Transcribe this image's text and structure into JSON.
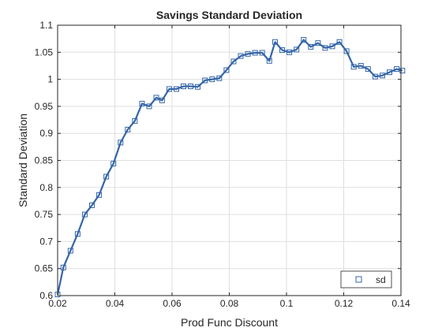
{
  "chart_data": {
    "type": "line",
    "title": "Savings Standard Deviation",
    "xlabel": "Prod Func Discount",
    "ylabel": "Standard Deviation",
    "xlim": [
      0.02,
      0.14
    ],
    "ylim": [
      0.6,
      1.1
    ],
    "xticks": [
      0.02,
      0.04,
      0.06,
      0.08,
      0.1,
      0.12,
      0.14
    ],
    "xtick_labels": [
      "0.02",
      "0.04",
      "0.06",
      "0.08",
      "0.1",
      "0.12",
      "0.14"
    ],
    "yticks": [
      0.6,
      0.65,
      0.7,
      0.75,
      0.8,
      0.85,
      0.9,
      0.95,
      1.0,
      1.05,
      1.1
    ],
    "ytick_labels": [
      "0.6",
      "0.65",
      "0.7",
      "0.75",
      "0.8",
      "0.85",
      "0.9",
      "0.95",
      "1",
      "1.05",
      "1.1"
    ],
    "grid": true,
    "legend_position": "bottom-right",
    "line_color": "#3465a8",
    "marker": "square",
    "series": [
      {
        "name": "sd",
        "x": [
          0.02,
          0.022,
          0.0245,
          0.027,
          0.0295,
          0.032,
          0.0345,
          0.037,
          0.0395,
          0.042,
          0.0445,
          0.047,
          0.0495,
          0.052,
          0.0545,
          0.0565,
          0.059,
          0.0615,
          0.064,
          0.0665,
          0.069,
          0.0715,
          0.074,
          0.0765,
          0.079,
          0.0815,
          0.084,
          0.0865,
          0.089,
          0.0915,
          0.094,
          0.096,
          0.0985,
          0.101,
          0.1035,
          0.106,
          0.1085,
          0.111,
          0.1135,
          0.116,
          0.1185,
          0.121,
          0.1235,
          0.126,
          0.1285,
          0.131,
          0.1335,
          0.136,
          0.1385,
          0.1405
        ],
        "y": [
          0.602,
          0.652,
          0.683,
          0.714,
          0.75,
          0.767,
          0.786,
          0.82,
          0.844,
          0.883,
          0.907,
          0.923,
          0.955,
          0.95,
          0.966,
          0.961,
          0.982,
          0.982,
          0.987,
          0.987,
          0.986,
          0.998,
          1.0,
          1.002,
          1.017,
          1.033,
          1.043,
          1.047,
          1.049,
          1.049,
          1.034,
          1.069,
          1.054,
          1.05,
          1.055,
          1.073,
          1.06,
          1.067,
          1.058,
          1.061,
          1.069,
          1.052,
          1.023,
          1.025,
          1.019,
          1.005,
          1.007,
          1.013,
          1.019,
          1.016
        ]
      }
    ]
  }
}
